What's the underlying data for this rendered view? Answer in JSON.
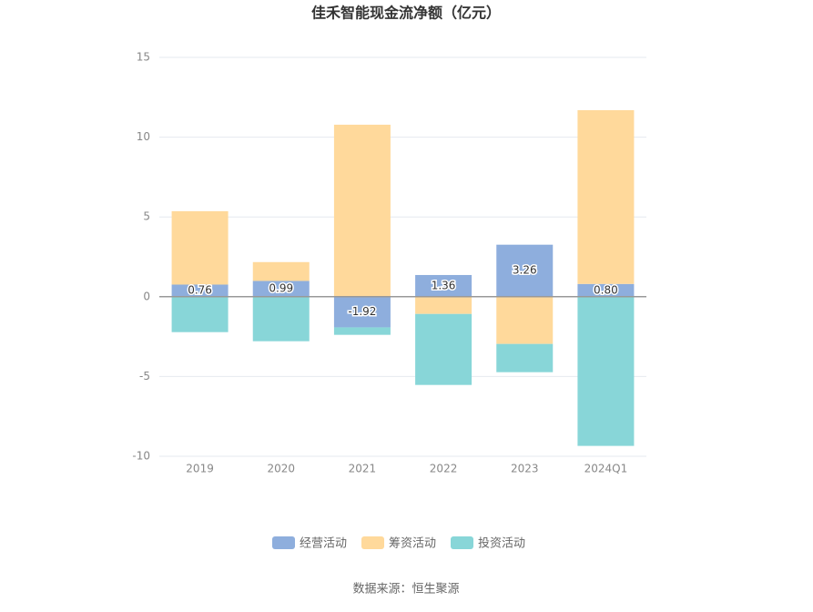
{
  "chart_data": {
    "type": "stacked_bar",
    "title": "佳禾智能现金流净额（亿元）",
    "categories": [
      "2019",
      "2020",
      "2021",
      "2022",
      "2023",
      "2024Q1"
    ],
    "series": [
      {
        "name": "经营活动",
        "color": "#8eaedd",
        "values": [
          0.76,
          0.99,
          -1.92,
          1.36,
          3.26,
          0.8
        ],
        "value_labels": [
          "0.76",
          "0.99",
          "-1.92",
          "1.36",
          "3.26",
          "0.80"
        ]
      },
      {
        "name": "筹资活动",
        "color": "#ffd99b",
        "values": [
          4.6,
          1.18,
          10.78,
          -1.08,
          -2.96,
          10.89
        ]
      },
      {
        "name": "投资活动",
        "color": "#88d6d8",
        "values": [
          -2.22,
          -2.79,
          -0.47,
          -4.45,
          -1.77,
          -9.35
        ]
      }
    ],
    "ylim": [
      -10,
      15
    ],
    "yticks": [
      -10,
      -5,
      0,
      5,
      10,
      15
    ],
    "grid": true,
    "legend": "bottom",
    "source": "数据来源：恒生聚源"
  }
}
